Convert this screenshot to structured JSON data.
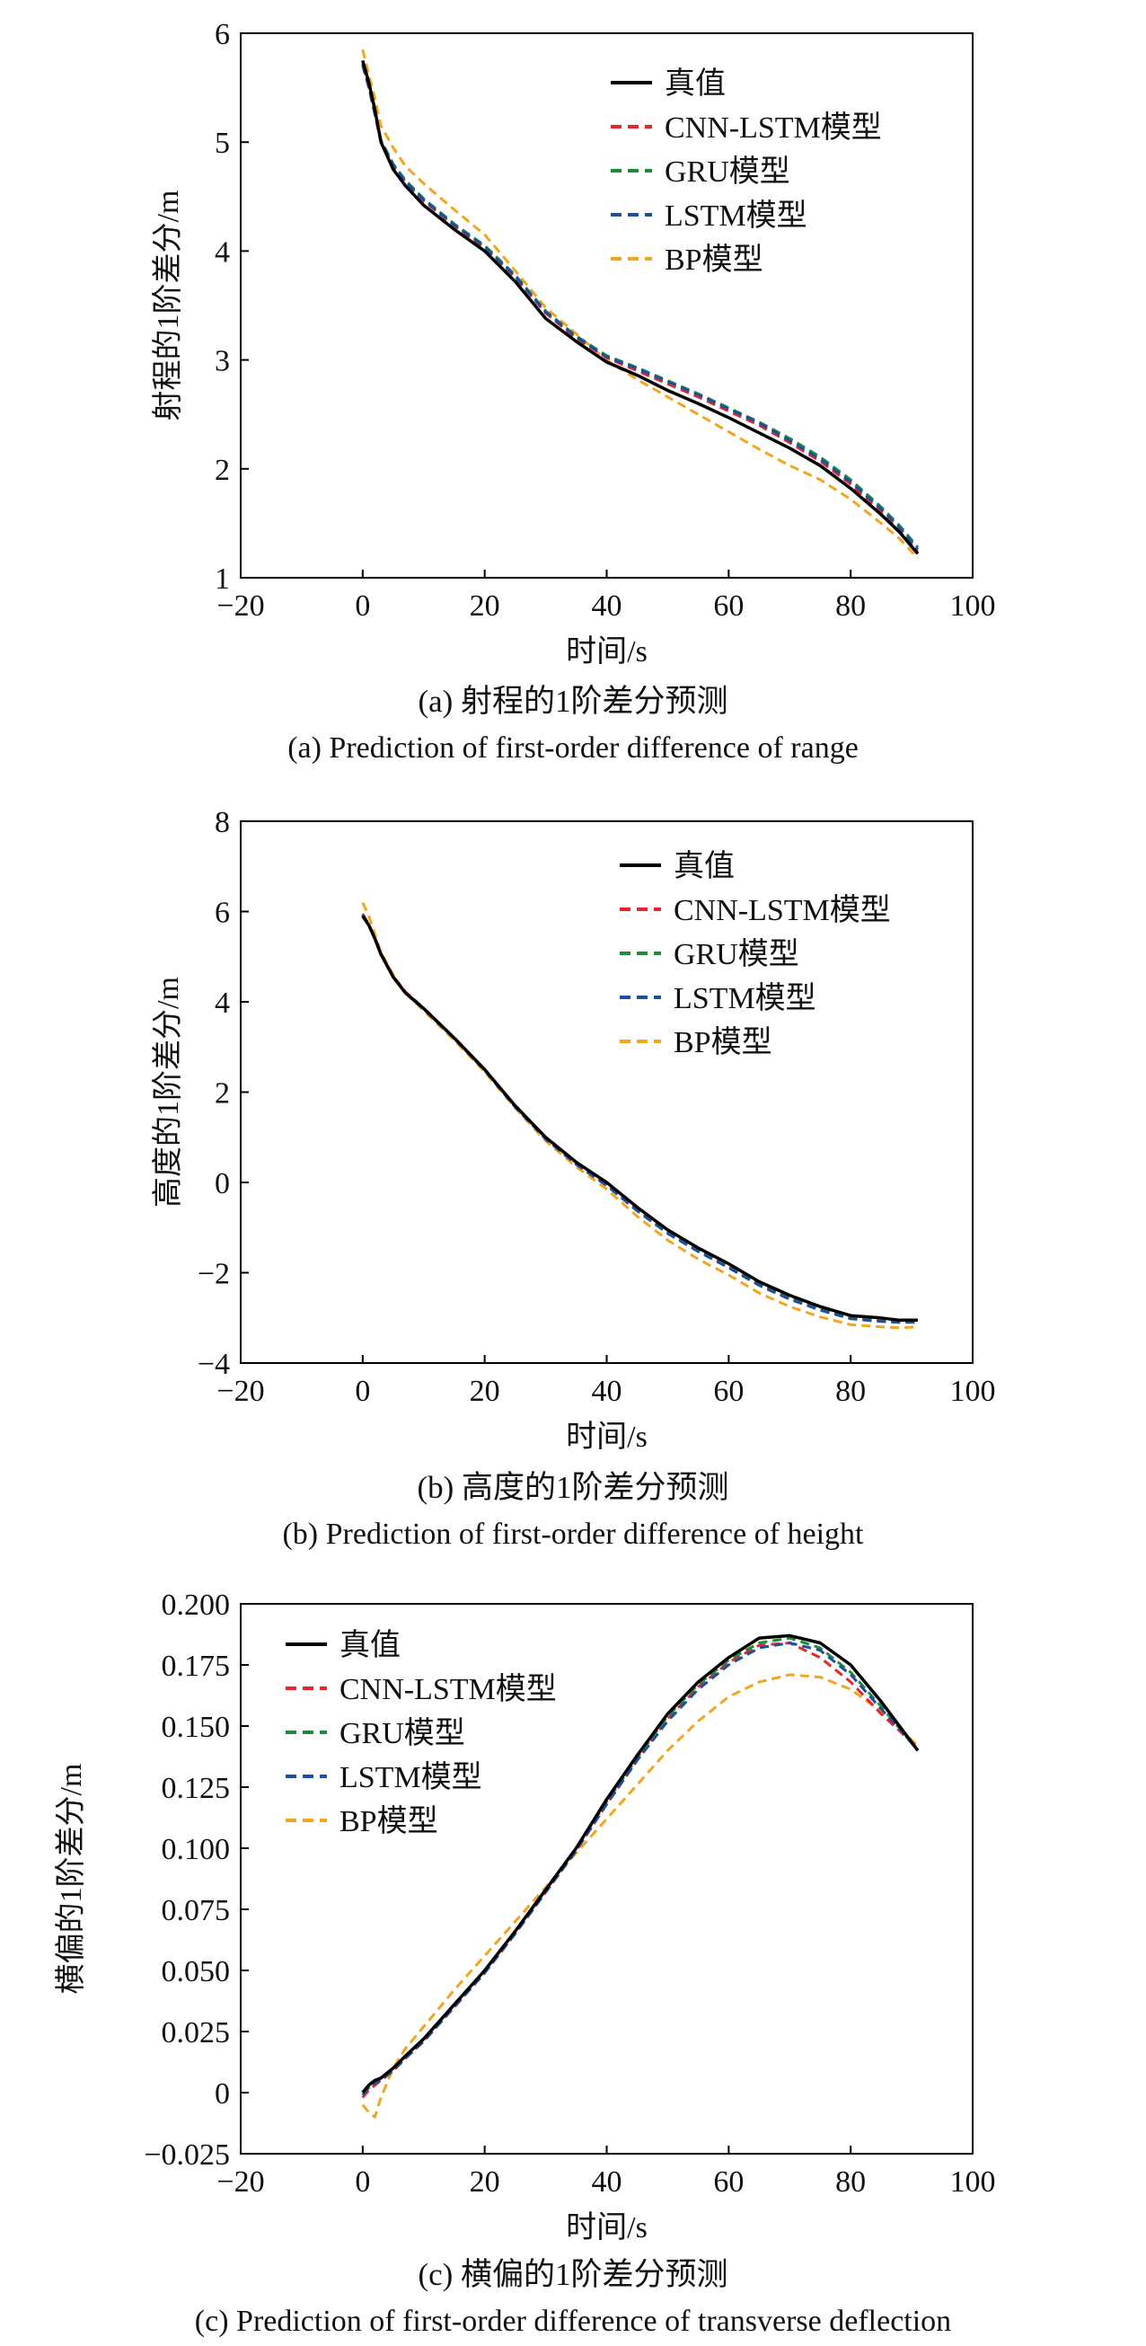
{
  "legend_entries": [
    {
      "label": "真值",
      "color": "#000000",
      "dash": "solid"
    },
    {
      "label": "CNN-LSTM模型",
      "color": "#e8262a",
      "dash": "dashed"
    },
    {
      "label": "GRU模型",
      "color": "#1f8a3c",
      "dash": "dashed"
    },
    {
      "label": "LSTM模型",
      "color": "#1d4fa0",
      "dash": "dashed"
    },
    {
      "label": "BP模型",
      "color": "#f2a51e",
      "dash": "dashed"
    }
  ],
  "chart_data": [
    {
      "type": "line",
      "caption_zh": "(a) 射程的1阶差分预测",
      "caption_en": "(a) Prediction of first-order difference of range",
      "xlabel": "时间/s",
      "ylabel": "射程的1阶差分/m",
      "xlim": [
        -20,
        100
      ],
      "ylim": [
        1,
        6
      ],
      "xticks": [
        "−20",
        "0",
        "20",
        "40",
        "60",
        "80",
        "100"
      ],
      "yticks": [
        "1",
        "2",
        "3",
        "4",
        "5",
        "6"
      ],
      "legend_position": "top-right",
      "x": [
        0,
        1,
        2,
        3,
        5,
        7,
        10,
        15,
        20,
        25,
        30,
        35,
        40,
        45,
        50,
        55,
        60,
        65,
        70,
        75,
        80,
        85,
        88,
        91
      ],
      "series": [
        {
          "name": "真值",
          "values": [
            5.75,
            5.55,
            5.3,
            5.0,
            4.75,
            4.6,
            4.42,
            4.2,
            4.0,
            3.72,
            3.38,
            3.17,
            2.98,
            2.86,
            2.72,
            2.6,
            2.47,
            2.33,
            2.19,
            2.03,
            1.82,
            1.58,
            1.42,
            1.22
          ]
        },
        {
          "name": "CNN-LSTM模型",
          "values": [
            5.7,
            5.5,
            5.25,
            5.0,
            4.78,
            4.63,
            4.46,
            4.23,
            4.03,
            3.76,
            3.43,
            3.2,
            3.02,
            2.9,
            2.78,
            2.66,
            2.53,
            2.4,
            2.24,
            2.07,
            1.86,
            1.6,
            1.43,
            1.24
          ]
        },
        {
          "name": "GRU模型",
          "values": [
            5.72,
            5.52,
            5.27,
            5.02,
            4.8,
            4.65,
            4.48,
            4.25,
            4.05,
            3.78,
            3.45,
            3.22,
            3.04,
            2.93,
            2.81,
            2.69,
            2.56,
            2.43,
            2.28,
            2.11,
            1.9,
            1.65,
            1.48,
            1.28
          ]
        },
        {
          "name": "LSTM模型",
          "values": [
            5.71,
            5.51,
            5.26,
            5.01,
            4.79,
            4.64,
            4.47,
            4.24,
            4.04,
            3.77,
            3.44,
            3.21,
            3.03,
            2.92,
            2.8,
            2.68,
            2.55,
            2.42,
            2.26,
            2.09,
            1.88,
            1.63,
            1.46,
            1.26
          ]
        },
        {
          "name": "BP模型",
          "values": [
            5.85,
            5.62,
            5.4,
            5.15,
            4.95,
            4.78,
            4.62,
            4.38,
            4.15,
            3.82,
            3.48,
            3.24,
            3.0,
            2.82,
            2.66,
            2.5,
            2.34,
            2.18,
            2.03,
            1.9,
            1.72,
            1.5,
            1.36,
            1.18
          ]
        }
      ]
    },
    {
      "type": "line",
      "caption_zh": "(b) 高度的1阶差分预测",
      "caption_en": "(b) Prediction of first-order difference of height",
      "xlabel": "时间/s",
      "ylabel": "高度的1阶差分/m",
      "xlim": [
        -20,
        100
      ],
      "ylim": [
        -4,
        8
      ],
      "xticks": [
        "−20",
        "0",
        "20",
        "40",
        "60",
        "80",
        "100"
      ],
      "yticks": [
        "−4",
        "−2",
        "0",
        "2",
        "4",
        "6",
        "8"
      ],
      "legend_position": "top-right",
      "x": [
        0,
        1,
        2,
        3,
        5,
        7,
        10,
        15,
        20,
        25,
        30,
        35,
        40,
        45,
        50,
        55,
        60,
        65,
        70,
        75,
        80,
        85,
        88,
        91
      ],
      "series": [
        {
          "name": "真值",
          "values": [
            5.9,
            5.7,
            5.4,
            5.05,
            4.55,
            4.2,
            3.85,
            3.2,
            2.5,
            1.7,
            1.0,
            0.45,
            0.0,
            -0.55,
            -1.05,
            -1.45,
            -1.8,
            -2.2,
            -2.5,
            -2.75,
            -2.95,
            -3.0,
            -3.05,
            -3.05
          ]
        },
        {
          "name": "CNN-LSTM模型",
          "values": [
            5.95,
            5.72,
            5.42,
            5.07,
            4.57,
            4.22,
            3.86,
            3.21,
            2.5,
            1.69,
            0.98,
            0.42,
            -0.05,
            -0.6,
            -1.1,
            -1.5,
            -1.86,
            -2.25,
            -2.56,
            -2.8,
            -3.0,
            -3.06,
            -3.08,
            -3.08
          ]
        },
        {
          "name": "GRU模型",
          "values": [
            5.93,
            5.71,
            5.41,
            5.06,
            4.56,
            4.21,
            3.85,
            3.2,
            2.49,
            1.68,
            0.97,
            0.41,
            -0.06,
            -0.61,
            -1.11,
            -1.51,
            -1.87,
            -2.26,
            -2.57,
            -2.81,
            -3.01,
            -3.07,
            -3.09,
            -3.09
          ]
        },
        {
          "name": "LSTM模型",
          "values": [
            5.92,
            5.7,
            5.4,
            5.05,
            4.55,
            4.2,
            3.84,
            3.19,
            2.48,
            1.67,
            0.96,
            0.4,
            -0.07,
            -0.63,
            -1.13,
            -1.53,
            -1.89,
            -2.28,
            -2.59,
            -2.83,
            -3.02,
            -3.08,
            -3.1,
            -3.1
          ]
        },
        {
          "name": "BP模型",
          "values": [
            6.2,
            5.9,
            5.5,
            5.1,
            4.6,
            4.2,
            3.8,
            3.15,
            2.45,
            1.65,
            0.92,
            0.35,
            -0.15,
            -0.75,
            -1.28,
            -1.7,
            -2.05,
            -2.45,
            -2.75,
            -2.98,
            -3.15,
            -3.2,
            -3.22,
            -3.2
          ]
        }
      ]
    },
    {
      "type": "line",
      "caption_zh": "(c) 横偏的1阶差分预测",
      "caption_en": "(c) Prediction of first-order difference of transverse deflection",
      "xlabel": "时间/s",
      "ylabel": "横偏的1阶差分/m",
      "xlim": [
        -20,
        100
      ],
      "ylim": [
        -0.025,
        0.2
      ],
      "xticks": [
        "−20",
        "0",
        "20",
        "40",
        "60",
        "80",
        "100"
      ],
      "yticks": [
        "−0.025",
        "0",
        "0.025",
        "0.050",
        "0.075",
        "0.100",
        "0.125",
        "0.150",
        "0.175",
        "0.200"
      ],
      "legend_position": "top-left",
      "x": [
        0,
        1,
        2,
        3,
        5,
        7,
        10,
        15,
        20,
        25,
        30,
        35,
        40,
        45,
        50,
        55,
        60,
        65,
        70,
        75,
        80,
        85,
        88,
        91
      ],
      "series": [
        {
          "name": "真值",
          "values": [
            0.0,
            0.003,
            0.005,
            0.006,
            0.01,
            0.015,
            0.022,
            0.036,
            0.05,
            0.066,
            0.083,
            0.1,
            0.12,
            0.138,
            0.155,
            0.168,
            0.178,
            0.186,
            0.187,
            0.184,
            0.175,
            0.16,
            0.15,
            0.14
          ]
        },
        {
          "name": "CNN-LSTM模型",
          "values": [
            -0.002,
            0.001,
            0.003,
            0.005,
            0.009,
            0.014,
            0.021,
            0.035,
            0.049,
            0.065,
            0.082,
            0.099,
            0.118,
            0.136,
            0.153,
            0.166,
            0.176,
            0.183,
            0.184,
            0.178,
            0.168,
            0.155,
            0.148,
            0.141
          ]
        },
        {
          "name": "GRU模型",
          "values": [
            0.0,
            0.002,
            0.004,
            0.006,
            0.01,
            0.015,
            0.022,
            0.036,
            0.05,
            0.066,
            0.083,
            0.1,
            0.119,
            0.137,
            0.154,
            0.167,
            0.177,
            0.184,
            0.186,
            0.182,
            0.172,
            0.158,
            0.149,
            0.14
          ]
        },
        {
          "name": "LSTM模型",
          "values": [
            -0.001,
            0.002,
            0.004,
            0.005,
            0.009,
            0.014,
            0.021,
            0.035,
            0.049,
            0.065,
            0.082,
            0.099,
            0.118,
            0.136,
            0.152,
            0.165,
            0.175,
            0.182,
            0.184,
            0.181,
            0.171,
            0.157,
            0.149,
            0.14
          ]
        },
        {
          "name": "BP模型",
          "values": [
            -0.005,
            -0.008,
            -0.01,
            -0.002,
            0.01,
            0.018,
            0.027,
            0.042,
            0.056,
            0.07,
            0.084,
            0.098,
            0.112,
            0.126,
            0.14,
            0.152,
            0.162,
            0.168,
            0.171,
            0.17,
            0.165,
            0.156,
            0.149,
            0.142
          ]
        }
      ]
    }
  ]
}
